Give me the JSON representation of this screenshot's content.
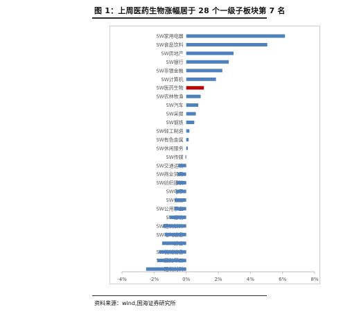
{
  "header": {
    "title": "图 1：上周医药生物涨幅居于 28 个一级子板块第 7 名"
  },
  "footer": {
    "source": "资料来源：wind,国海证券研究所"
  },
  "chart_data": {
    "type": "bar",
    "orientation": "horizontal",
    "title": "",
    "xlabel": "",
    "ylabel": "",
    "xlim": [
      -4,
      8
    ],
    "x_ticks": [
      "-4%",
      "-2%",
      "0%",
      "2%",
      "4%",
      "6%",
      "8%"
    ],
    "grid": false,
    "legend": "none",
    "colors": {
      "bar": "#4f81bd",
      "highlight": "#c00000",
      "axis": "#bfbfbf"
    },
    "highlight_category": "SW医药生物",
    "categories": [
      "SW家用电器",
      "SW食品饮料",
      "SW房地产",
      "SW银行",
      "SW非银金融",
      "SW计算机",
      "SW医药生物",
      "SW农林牧渔",
      "SW汽车",
      "SW采掘",
      "SW钢铁",
      "SW轻工制造",
      "SW有色金属",
      "SW休闲服务",
      "SW传媒",
      "SW交通运输",
      "SW商业贸易",
      "SW纺织服装",
      "SW电子",
      "SW化工",
      "SW公用事业",
      "SW通信",
      "SW建筑装饰",
      "SW电气设备",
      "SW综合",
      "SW机械设备",
      "SW国防军工",
      "SW建筑材料"
    ],
    "values": [
      6.15,
      5.05,
      2.95,
      2.65,
      2.25,
      1.85,
      1.1,
      0.9,
      0.75,
      0.6,
      0.5,
      0.2,
      0.15,
      0.1,
      -0.05,
      -0.5,
      -0.55,
      -0.6,
      -0.65,
      -0.7,
      -0.75,
      -1.05,
      -1.45,
      -1.35,
      -1.5,
      -1.7,
      -1.8,
      -2.5
    ]
  }
}
